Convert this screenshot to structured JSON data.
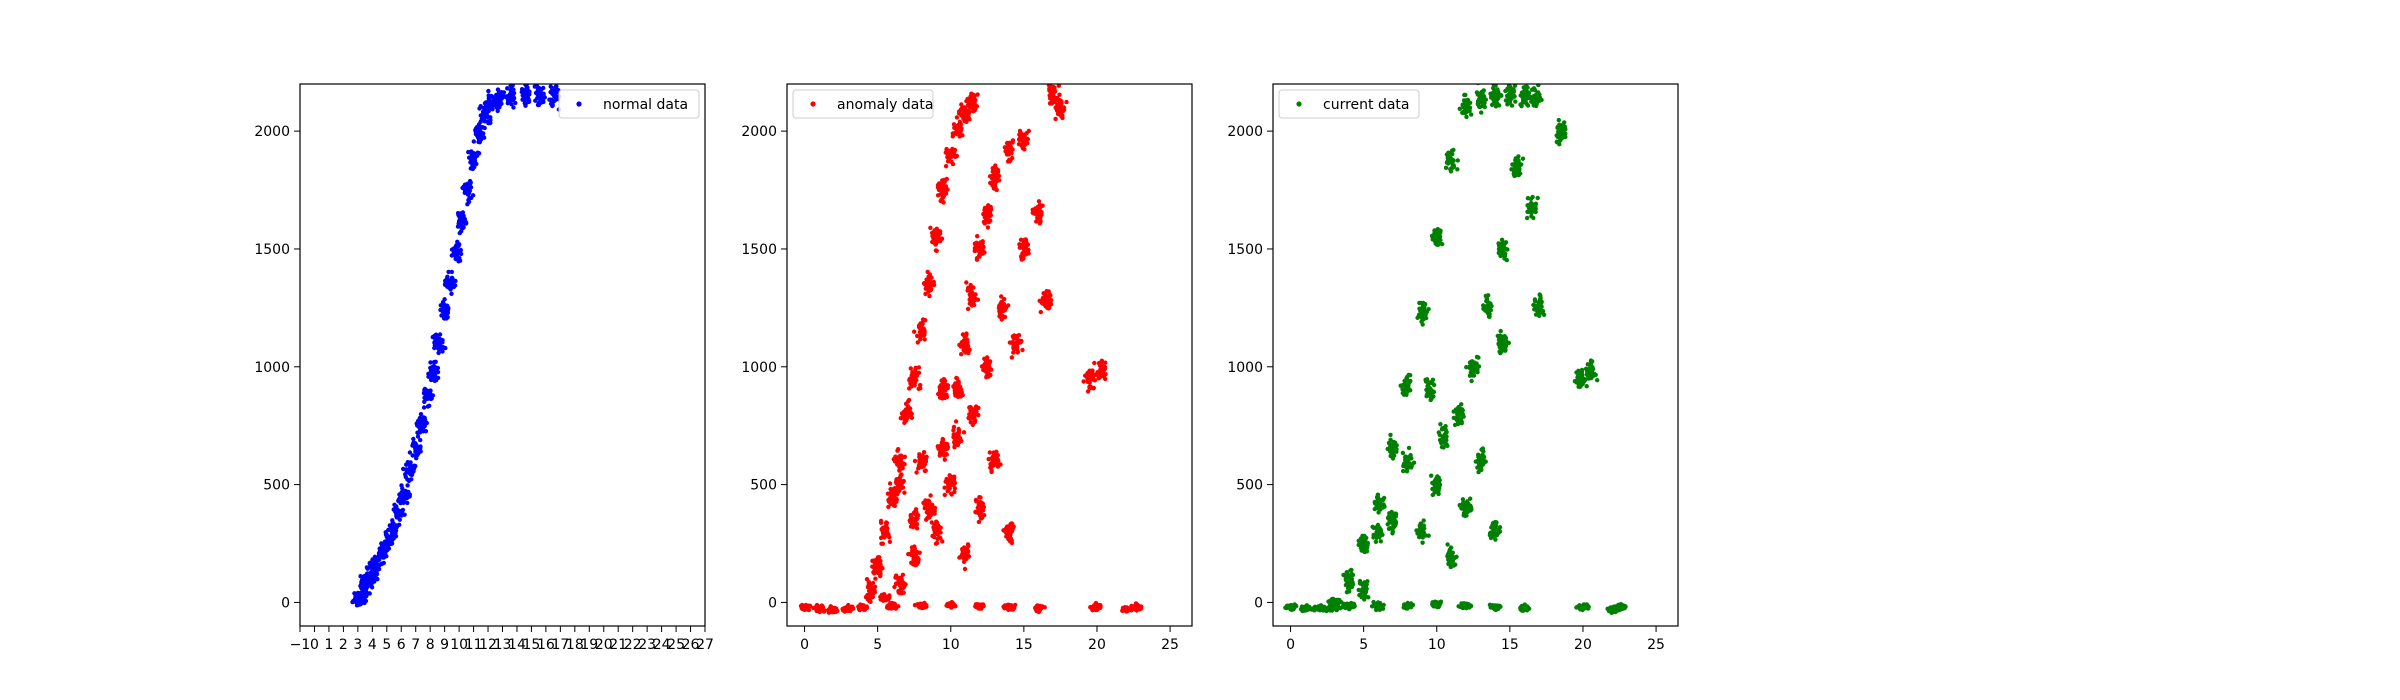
{
  "chart_data": [
    {
      "type": "scatter",
      "title": "",
      "xlabel": "",
      "ylabel": "",
      "xlim": [
        -1,
        27
      ],
      "ylim": [
        -100,
        2200
      ],
      "xticks": [
        -1,
        0,
        1,
        2,
        3,
        4,
        5,
        6,
        7,
        8,
        9,
        10,
        11,
        12,
        13,
        14,
        15,
        16,
        17,
        18,
        19,
        20,
        21,
        22,
        23,
        24,
        25,
        26,
        27
      ],
      "yticks": [
        0,
        500,
        1000,
        1500,
        2000
      ],
      "grid": false,
      "legend_position": "top-right",
      "series": [
        {
          "name": "normal data",
          "color": "#0000ff",
          "points": [
            [
              3.0,
              5
            ],
            [
              3.2,
              30
            ],
            [
              3.5,
              60
            ],
            [
              3.8,
              100
            ],
            [
              4.2,
              150
            ],
            [
              4.6,
              200
            ],
            [
              5.0,
              250
            ],
            [
              5.4,
              300
            ],
            [
              5.8,
              380
            ],
            [
              6.2,
              460
            ],
            [
              6.6,
              560
            ],
            [
              7.0,
              660
            ],
            [
              7.4,
              760
            ],
            [
              7.8,
              870
            ],
            [
              8.2,
              980
            ],
            [
              8.6,
              1100
            ],
            [
              9.0,
              1230
            ],
            [
              9.4,
              1360
            ],
            [
              9.8,
              1490
            ],
            [
              10.2,
              1620
            ],
            [
              10.6,
              1750
            ],
            [
              11.0,
              1880
            ],
            [
              11.4,
              1990
            ],
            [
              11.8,
              2070
            ],
            [
              12.2,
              2120
            ],
            [
              12.8,
              2140
            ],
            [
              13.6,
              2150
            ],
            [
              14.6,
              2150
            ],
            [
              15.6,
              2150
            ],
            [
              16.6,
              2150
            ]
          ]
        },
        {
          "name": "anomaly data",
          "color": "#ff0000",
          "points": [
            [
              0.0,
              -20
            ],
            [
              1.0,
              -25
            ],
            [
              2.0,
              -30
            ],
            [
              3.0,
              -25
            ],
            [
              4.0,
              -20
            ],
            [
              6.0,
              -15
            ],
            [
              8.0,
              -15
            ],
            [
              10.0,
              -10
            ],
            [
              12.0,
              -15
            ],
            [
              14.0,
              -20
            ],
            [
              16.0,
              -25
            ],
            [
              4.5,
              50
            ],
            [
              5.0,
              150
            ],
            [
              5.5,
              300
            ],
            [
              6.0,
              450
            ],
            [
              6.5,
              600
            ],
            [
              7.0,
              800
            ],
            [
              7.5,
              950
            ],
            [
              8.0,
              1150
            ],
            [
              8.5,
              1350
            ],
            [
              9.0,
              1550
            ],
            [
              9.5,
              1750
            ],
            [
              10.0,
              1900
            ],
            [
              10.5,
              2000
            ],
            [
              11.0,
              2080
            ],
            [
              11.5,
              2120
            ],
            [
              5.5,
              20
            ],
            [
              6.5,
              80
            ],
            [
              7.5,
              200
            ],
            [
              8.5,
              400
            ],
            [
              9.5,
              650
            ],
            [
              10.5,
              900
            ],
            [
              11.0,
              1100
            ],
            [
              11.5,
              1300
            ],
            [
              12.0,
              1500
            ],
            [
              12.5,
              1650
            ],
            [
              13.0,
              1800
            ],
            [
              14.0,
              1920
            ],
            [
              15.0,
              1960
            ],
            [
              6.5,
              500
            ],
            [
              7.5,
              350
            ],
            [
              8.0,
              600
            ],
            [
              9.0,
              300
            ],
            [
              9.5,
              900
            ],
            [
              10.0,
              500
            ],
            [
              10.5,
              700
            ],
            [
              11.0,
              200
            ],
            [
              11.5,
              800
            ],
            [
              12.0,
              400
            ],
            [
              12.5,
              1000
            ],
            [
              13.0,
              600
            ],
            [
              13.5,
              1250
            ],
            [
              14.0,
              300
            ],
            [
              14.5,
              1100
            ],
            [
              15.0,
              1500
            ],
            [
              16.0,
              1650
            ],
            [
              16.5,
              1280
            ],
            [
              17.0,
              2150
            ],
            [
              17.5,
              2100
            ],
            [
              19.5,
              950
            ],
            [
              20.3,
              990
            ],
            [
              20.0,
              -20
            ],
            [
              22.0,
              -30
            ],
            [
              22.7,
              -20
            ]
          ]
        },
        {
          "name": "current data",
          "color": "#008000",
          "points": [
            [
              0.0,
              -20
            ],
            [
              1.0,
              -25
            ],
            [
              2.0,
              -25
            ],
            [
              3.0,
              -20
            ],
            [
              4.0,
              -15
            ],
            [
              6.0,
              -15
            ],
            [
              8.0,
              -15
            ],
            [
              10.0,
              -10
            ],
            [
              12.0,
              -15
            ],
            [
              14.0,
              -20
            ],
            [
              16.0,
              -25
            ],
            [
              3.0,
              5
            ],
            [
              4.0,
              100
            ],
            [
              5.0,
              250
            ],
            [
              6.0,
              420
            ],
            [
              7.0,
              660
            ],
            [
              8.0,
              920
            ],
            [
              9.0,
              1230
            ],
            [
              10.0,
              1550
            ],
            [
              11.0,
              1880
            ],
            [
              12.0,
              2100
            ],
            [
              13.0,
              2140
            ],
            [
              14.0,
              2150
            ],
            [
              15.0,
              2150
            ],
            [
              16.0,
              2150
            ],
            [
              16.8,
              2140
            ],
            [
              18.5,
              2000
            ],
            [
              17.0,
              1250
            ],
            [
              16.5,
              1680
            ],
            [
              15.5,
              1850
            ],
            [
              14.5,
              1500
            ],
            [
              5.0,
              50
            ],
            [
              6.0,
              300
            ],
            [
              7.0,
              350
            ],
            [
              8.0,
              600
            ],
            [
              9.0,
              300
            ],
            [
              9.5,
              900
            ],
            [
              10.0,
              500
            ],
            [
              10.5,
              700
            ],
            [
              11.0,
              200
            ],
            [
              11.5,
              800
            ],
            [
              12.0,
              400
            ],
            [
              12.5,
              1000
            ],
            [
              13.0,
              600
            ],
            [
              13.5,
              1250
            ],
            [
              14.0,
              300
            ],
            [
              14.5,
              1100
            ],
            [
              19.8,
              950
            ],
            [
              20.5,
              990
            ],
            [
              20.0,
              -20
            ],
            [
              22.0,
              -30
            ],
            [
              22.6,
              -20
            ]
          ]
        }
      ]
    },
    {
      "type": "scatter",
      "title": "",
      "xlabel": "",
      "ylabel": "",
      "xlim": [
        -1.2,
        26.5
      ],
      "ylim": [
        -100,
        2200
      ],
      "xticks": [
        0,
        5,
        10,
        15,
        20,
        25
      ],
      "yticks": [
        0,
        500,
        1000,
        1500,
        2000
      ],
      "grid": false,
      "legend_position": "top-left"
    },
    {
      "type": "scatter",
      "title": "",
      "xlabel": "",
      "ylabel": "",
      "xlim": [
        -1.2,
        26.5
      ],
      "ylim": [
        -100,
        2200
      ],
      "xticks": [
        0,
        5,
        10,
        15,
        20,
        25
      ],
      "yticks": [
        0,
        500,
        1000,
        1500,
        2000
      ],
      "grid": false,
      "legend_position": "top-left"
    }
  ]
}
